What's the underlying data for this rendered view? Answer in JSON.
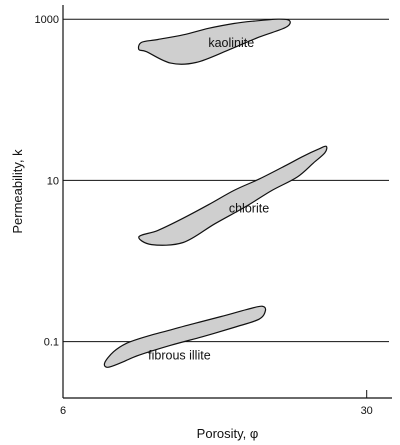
{
  "chart_data": {
    "type": "scatter",
    "title": "",
    "xlabel": "Porosity, φ",
    "ylabel": "Permeability, k",
    "xscale": "linear",
    "yscale": "log",
    "xlim": [
      6,
      32
    ],
    "ylim": [
      0.02,
      1500
    ],
    "grid": "horizontal lines at labeled y ticks",
    "x_ticks": [
      {
        "value": 6,
        "label": "6"
      },
      {
        "value": 30,
        "label": "30"
      }
    ],
    "y_ticks": [
      {
        "value": 0.1,
        "label": "0.1"
      },
      {
        "value": 10,
        "label": "10"
      },
      {
        "value": 1000,
        "label": "1000"
      }
    ],
    "series": [
      {
        "name": "kaolinite",
        "fill": "#cfcfcf",
        "points": [
          [
            12.0,
            420
          ],
          [
            12.2,
            515
          ],
          [
            13.5,
            560
          ],
          [
            15.5,
            640
          ],
          [
            17.5,
            770
          ],
          [
            19.5,
            885
          ],
          [
            21.0,
            945
          ],
          [
            23.0,
            1000
          ],
          [
            23.9,
            960
          ],
          [
            23.6,
            790
          ],
          [
            21.5,
            600
          ],
          [
            19.0,
            410
          ],
          [
            16.5,
            290
          ],
          [
            14.5,
            285
          ],
          [
            12.6,
            395
          ]
        ]
      },
      {
        "name": "chlorite",
        "fill": "#cfcfcf",
        "points": [
          [
            12.0,
            2.0
          ],
          [
            13.5,
            2.4
          ],
          [
            15.5,
            3.4
          ],
          [
            17.5,
            5.0
          ],
          [
            19.5,
            7.5
          ],
          [
            21.5,
            10.4
          ],
          [
            23.5,
            15.0
          ],
          [
            25.0,
            20.0
          ],
          [
            26.2,
            24.5
          ],
          [
            26.8,
            26.5
          ],
          [
            26.7,
            22.0
          ],
          [
            25.8,
            16.5
          ],
          [
            24.5,
            11.0
          ],
          [
            22.5,
            7.5
          ],
          [
            20.5,
            4.8
          ],
          [
            18.0,
            2.9
          ],
          [
            15.5,
            1.7
          ],
          [
            13.0,
            1.6
          ]
        ]
      },
      {
        "name": "fibrous illite",
        "fill": "#cfcfcf",
        "points": [
          [
            9.3,
            0.055
          ],
          [
            10.0,
            0.075
          ],
          [
            11.0,
            0.095
          ],
          [
            12.5,
            0.115
          ],
          [
            14.5,
            0.14
          ],
          [
            16.5,
            0.17
          ],
          [
            18.5,
            0.205
          ],
          [
            20.5,
            0.25
          ],
          [
            21.7,
            0.275
          ],
          [
            22.0,
            0.245
          ],
          [
            21.5,
            0.19
          ],
          [
            19.5,
            0.15
          ],
          [
            17.0,
            0.115
          ],
          [
            14.5,
            0.09
          ],
          [
            12.0,
            0.068
          ],
          [
            10.5,
            0.054
          ],
          [
            9.5,
            0.048
          ]
        ]
      }
    ],
    "annotations": [
      {
        "text": "kaolinite",
        "x": 19.3,
        "y": 450
      },
      {
        "text": "chlorite",
        "x": 20.7,
        "y": 4.0
      },
      {
        "text": "fibrous illite",
        "x": 15.2,
        "y": 0.06
      }
    ]
  }
}
